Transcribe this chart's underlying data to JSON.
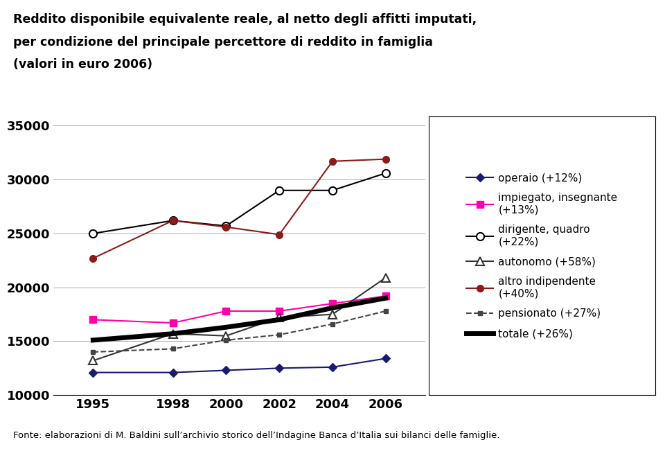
{
  "years": [
    1995,
    1998,
    2000,
    2002,
    2004,
    2006
  ],
  "operaio": [
    12100,
    12100,
    12300,
    12500,
    12600,
    13400
  ],
  "impiegato": [
    17000,
    16700,
    17800,
    17800,
    18500,
    19200
  ],
  "dirigente": [
    25000,
    26200,
    25700,
    29000,
    29000,
    30600
  ],
  "autonomo": [
    13200,
    15700,
    15500,
    17200,
    17500,
    20900
  ],
  "altro": [
    22700,
    26200,
    25600,
    24900,
    31700,
    31900
  ],
  "pensionato": [
    14000,
    14300,
    15100,
    15600,
    16600,
    17800
  ],
  "totale": [
    15100,
    15700,
    16300,
    17000,
    18100,
    19000
  ],
  "operaio_color": "#1a1a6e",
  "impiegato_color": "#ff00aa",
  "dirigente_color": "#000000",
  "autonomo_color": "#333333",
  "altro_color": "#8b1a1a",
  "pensionato_color": "#444444",
  "totale_color": "#000000",
  "ylim": [
    10000,
    35000
  ],
  "yticks": [
    10000,
    15000,
    20000,
    25000,
    30000,
    35000
  ],
  "title_line1": "Reddito disponibile equivalente reale, al netto degli affitti imputati,",
  "title_line2": "per condizione del principale percettore di reddito in famiglia",
  "title_line3": "(valori in euro 2006)",
  "footnote": "Fonte: elaborazioni di M. Baldini sull’archivio storico dell’Indagine Banca d’Italia sui bilanci delle famiglie.",
  "legend_labels": [
    "operaio (+12%)",
    "impiegato, insegnante\n(+13%)",
    "dirigente, quadro\n(+22%)",
    "autonomo (+58%)",
    "altro indipendente\n(+40%)",
    "pensionato (+27%)",
    "totale (+26%)"
  ]
}
